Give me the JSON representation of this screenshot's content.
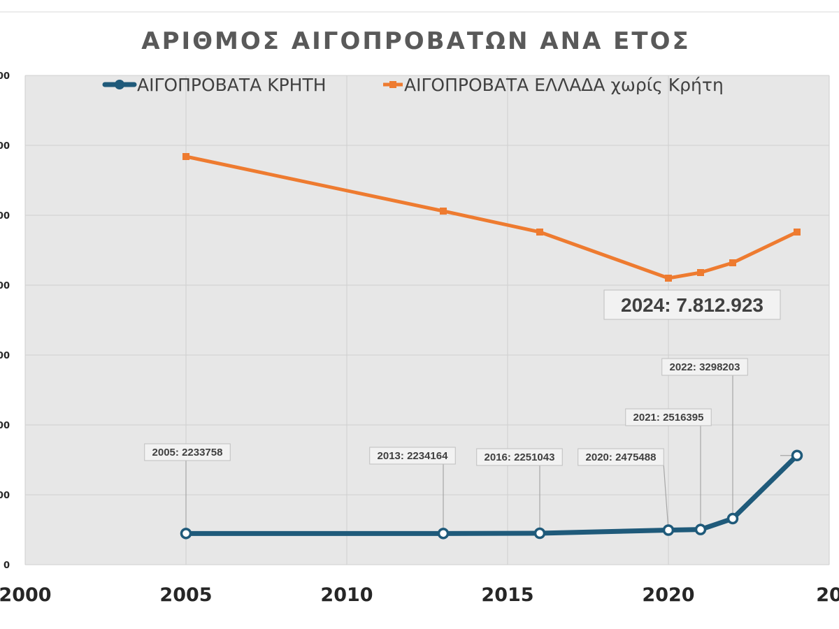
{
  "chart_data": {
    "type": "line",
    "title": "ΑΡΙΘΜΟΣ ΑΙΓΟΠΡΟΒΑΤΩΝ  ΑΝΑ ΕΤΟΣ",
    "xlim": [
      2000,
      2025
    ],
    "ylim": [
      0,
      35000000
    ],
    "x_ticks": [
      "2000",
      "2005",
      "2010",
      "2015",
      "2020",
      "20"
    ],
    "y_ticks": [
      "00",
      "00",
      "00",
      "00",
      "00",
      "00",
      "00",
      "0"
    ],
    "grid": true,
    "legend_position": "top",
    "series": [
      {
        "name": "ΑΙΓΟΠΡΟΒΑΤΑ  ΚΡΗΤΗ",
        "color": "#1f5a7a",
        "marker": "circle",
        "points": [
          {
            "x": 2005,
            "y": 2233758
          },
          {
            "x": 2013,
            "y": 2234164
          },
          {
            "x": 2016,
            "y": 2251043
          },
          {
            "x": 2020,
            "y": 2475488
          },
          {
            "x": 2021,
            "y": 2516395
          },
          {
            "x": 2022,
            "y": 3298203
          },
          {
            "x": 2024,
            "y": 7812923
          }
        ]
      },
      {
        "name": "ΑΙΓΟΠΡΟΒΑΤΑ  ΕΛΛΑΔΑ χωρίς Κρήτη",
        "color": "#ee7b30",
        "marker": "square",
        "points": [
          {
            "x": 2005,
            "y": 29200000
          },
          {
            "x": 2013,
            "y": 25300000
          },
          {
            "x": 2016,
            "y": 23800000
          },
          {
            "x": 2020,
            "y": 20500000
          },
          {
            "x": 2021,
            "y": 20900000
          },
          {
            "x": 2022,
            "y": 21600000
          },
          {
            "x": 2024,
            "y": 23800000
          }
        ]
      }
    ],
    "annotations": [
      {
        "text": "2005: 2233758",
        "size": "small"
      },
      {
        "text": "2013: 2234164",
        "size": "small"
      },
      {
        "text": "2016: 2251043",
        "size": "small"
      },
      {
        "text": "2020: 2475488",
        "size": "small"
      },
      {
        "text": "2021: 2516395",
        "size": "small"
      },
      {
        "text": "2022: 3298203",
        "size": "small"
      },
      {
        "text": "2024: 7.812.923",
        "size": "large"
      }
    ]
  }
}
